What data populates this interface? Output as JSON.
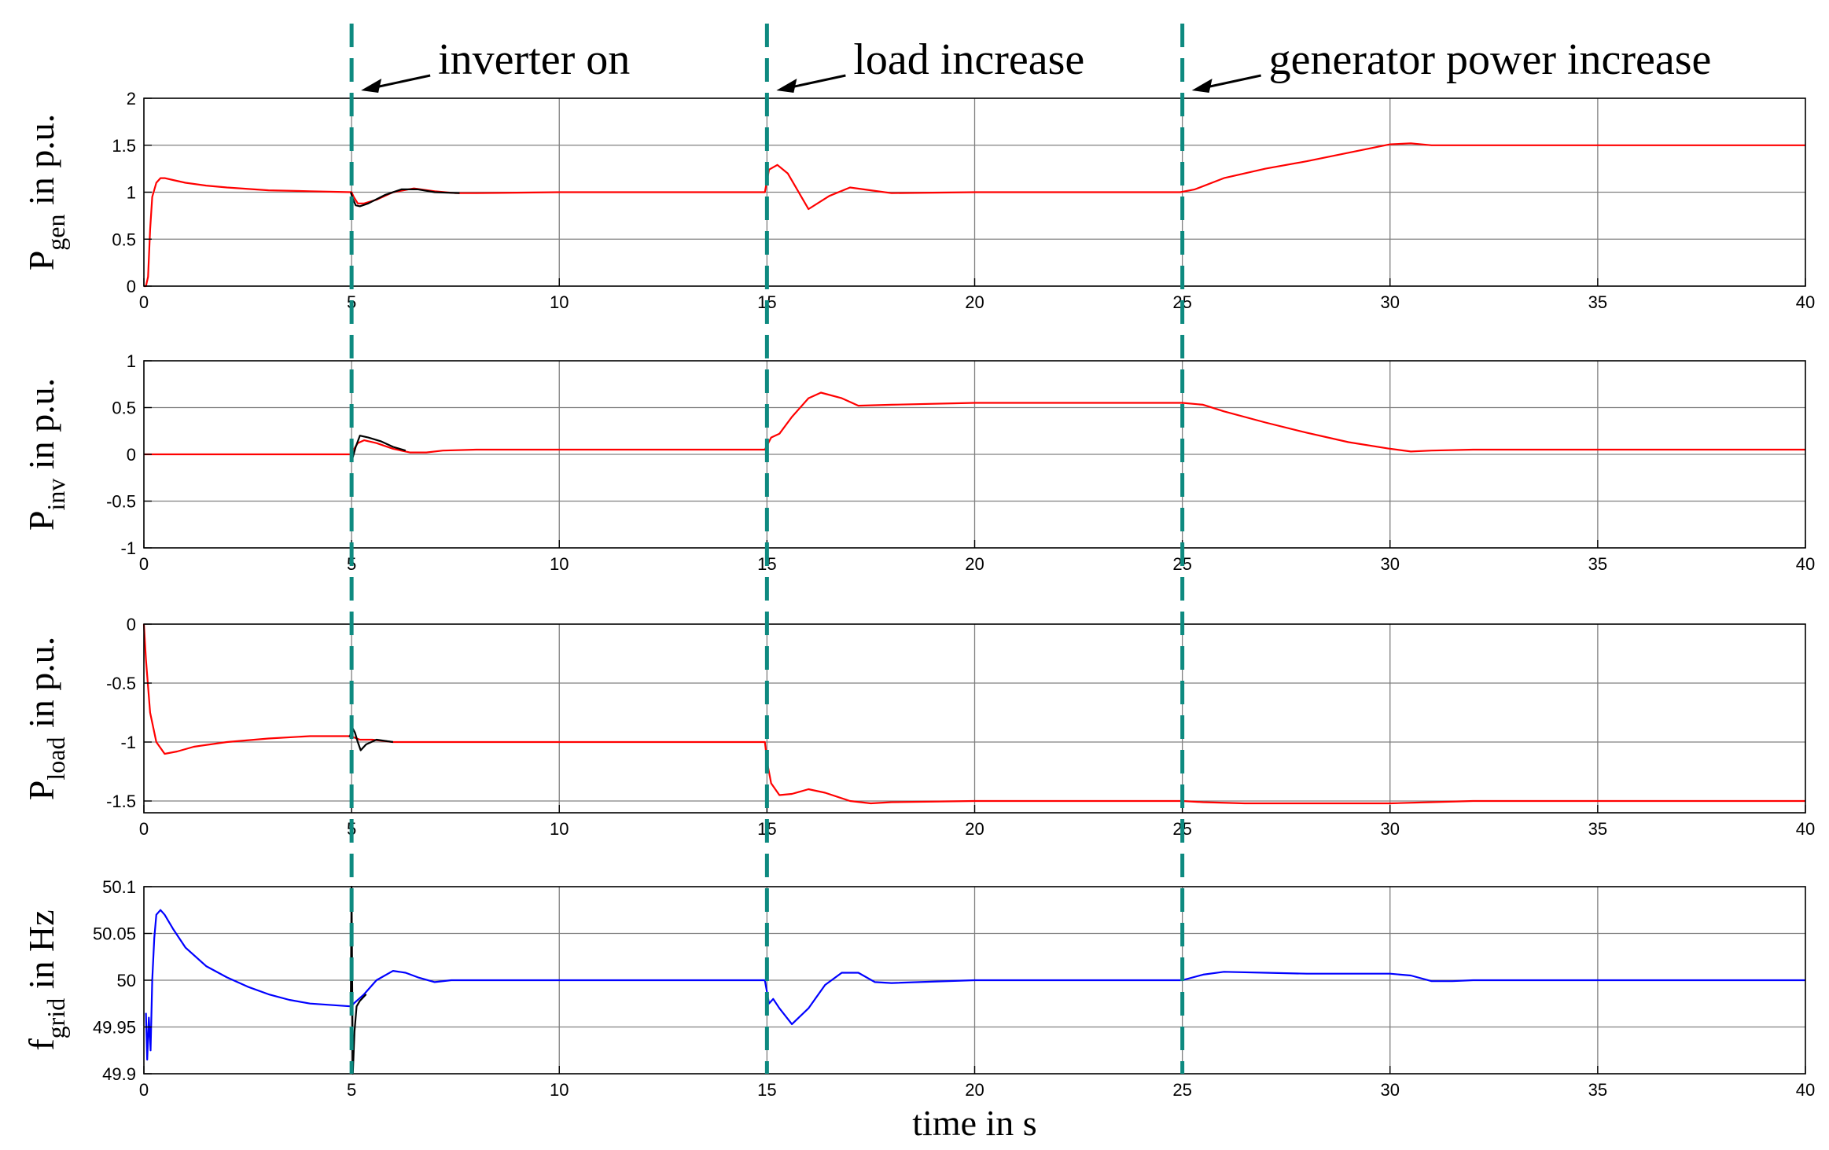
{
  "chart_data": {
    "type": "line",
    "xlabel": "time in s",
    "xlim": [
      0,
      40
    ],
    "xticks": [
      0,
      5,
      10,
      15,
      20,
      25,
      30,
      35,
      40
    ],
    "grid": true,
    "colors": {
      "trace": "#ff0000",
      "trace_f": "#0000ff",
      "reference": "#000000",
      "event_line": "#0e8a80",
      "grid": "#808080"
    },
    "events": [
      {
        "t": 5,
        "label": "inverter on"
      },
      {
        "t": 15,
        "label": "load increase"
      },
      {
        "t": 25,
        "label": "generator power increase"
      }
    ],
    "panels": [
      {
        "ylabel": "P",
        "ylabel_sub": "gen",
        "ylabel_suffix": "in p.u.",
        "ylim": [
          0,
          2
        ],
        "yticks": [
          0,
          0.5,
          1,
          1.5,
          2
        ],
        "yticklabels": [
          "0",
          "0.5",
          "1",
          "1.5",
          "2"
        ],
        "series": [
          {
            "color": "#ff0000",
            "x": [
              0,
              0.05,
              0.1,
              0.15,
              0.2,
              0.3,
              0.4,
              0.5,
              0.7,
              1,
              1.5,
              2,
              3,
              4,
              5,
              5.05,
              5.15,
              5.3,
              5.6,
              6,
              6.5,
              7,
              7.5,
              8,
              10,
              14.95,
              15.05,
              15.25,
              15.5,
              16,
              16.5,
              17,
              17.5,
              18,
              20,
              24.95,
              25.3,
              26,
              27,
              28,
              29,
              30,
              30.5,
              31,
              32,
              35,
              40
            ],
            "y": [
              0,
              0,
              0.1,
              0.6,
              0.95,
              1.1,
              1.15,
              1.15,
              1.13,
              1.1,
              1.07,
              1.05,
              1.02,
              1.01,
              1.0,
              0.95,
              0.88,
              0.88,
              0.92,
              1.0,
              1.04,
              1.01,
              0.99,
              0.99,
              1.0,
              1.0,
              1.24,
              1.29,
              1.2,
              0.82,
              0.96,
              1.05,
              1.02,
              0.99,
              1.0,
              1.0,
              1.03,
              1.15,
              1.25,
              1.33,
              1.42,
              1.51,
              1.52,
              1.5,
              1.5,
              1.5,
              1.5
            ]
          },
          {
            "color": "#000000",
            "x": [
              4.98,
              5.03,
              5.1,
              5.2,
              5.4,
              5.8,
              6.2,
              6.6,
              7,
              7.6
            ],
            "y": [
              1.0,
              0.93,
              0.86,
              0.85,
              0.88,
              0.97,
              1.03,
              1.03,
              1.0,
              0.99
            ]
          }
        ]
      },
      {
        "ylabel": "P",
        "ylabel_sub": "inv",
        "ylabel_suffix": "in p.u.",
        "ylim": [
          -1,
          1
        ],
        "yticks": [
          -1,
          -0.5,
          0,
          0.5,
          1
        ],
        "yticklabels": [
          "-1",
          "-0.5",
          "0",
          "0.5",
          "1"
        ],
        "series": [
          {
            "color": "#ff0000",
            "x": [
              0,
              4.98,
              5.05,
              5.15,
              5.3,
              5.6,
              6,
              6.4,
              6.8,
              7.2,
              8,
              10,
              14.95,
              15.1,
              15.3,
              15.6,
              16,
              16.3,
              16.8,
              17.2,
              18,
              20,
              25,
              25.5,
              26,
              27,
              28,
              29,
              30,
              30.5,
              31,
              32,
              35,
              40
            ],
            "y": [
              0,
              0,
              0.05,
              0.12,
              0.15,
              0.12,
              0.06,
              0.02,
              0.02,
              0.04,
              0.05,
              0.05,
              0.05,
              0.18,
              0.22,
              0.4,
              0.6,
              0.66,
              0.6,
              0.52,
              0.53,
              0.55,
              0.55,
              0.53,
              0.46,
              0.34,
              0.23,
              0.13,
              0.06,
              0.03,
              0.04,
              0.05,
              0.05,
              0.05
            ]
          },
          {
            "color": "#000000",
            "x": [
              4.98,
              5.03,
              5.1,
              5.2,
              5.4,
              5.7,
              6,
              6.3
            ],
            "y": [
              0,
              -0.03,
              0.08,
              0.2,
              0.18,
              0.14,
              0.08,
              0.04
            ]
          }
        ]
      },
      {
        "ylabel": "P",
        "ylabel_sub": "load",
        "ylabel_suffix": "in p.u.",
        "ylim": [
          -1.6,
          0
        ],
        "yticks": [
          -1.5,
          -1,
          -0.5,
          0
        ],
        "yticklabels": [
          "-1.5",
          "-1",
          "-0.5",
          "0"
        ],
        "series": [
          {
            "color": "#ff0000",
            "x": [
              0,
              0.05,
              0.15,
              0.3,
              0.5,
              0.8,
              1.2,
              2,
              3,
              4,
              4.98,
              5.05,
              5.2,
              5.5,
              6,
              6.5,
              7,
              8,
              10,
              14.95,
              15.02,
              15.1,
              15.3,
              15.6,
              16,
              16.4,
              17,
              17.5,
              18,
              20,
              25,
              25.5,
              26.5,
              28,
              30,
              31,
              32,
              35,
              40
            ],
            "y": [
              0,
              -0.3,
              -0.75,
              -1.0,
              -1.1,
              -1.08,
              -1.04,
              -1.0,
              -0.97,
              -0.95,
              -0.95,
              -0.96,
              -0.98,
              -0.98,
              -1.0,
              -1.0,
              -1.0,
              -1.0,
              -1.0,
              -1.0,
              -1.2,
              -1.35,
              -1.45,
              -1.44,
              -1.4,
              -1.43,
              -1.5,
              -1.52,
              -1.51,
              -1.5,
              -1.5,
              -1.51,
              -1.52,
              -1.52,
              -1.52,
              -1.51,
              -1.5,
              -1.5,
              -1.5
            ]
          },
          {
            "color": "#000000",
            "x": [
              4.95,
              5.02,
              5.08,
              5.15,
              5.22,
              5.35,
              5.6,
              6
            ],
            "y": [
              -0.96,
              -0.88,
              -0.92,
              -1.0,
              -1.07,
              -1.02,
              -0.98,
              -1.0
            ]
          }
        ]
      },
      {
        "ylabel": "f",
        "ylabel_sub": "grid",
        "ylabel_suffix": "in Hz",
        "ylim": [
          49.9,
          50.1
        ],
        "yticks": [
          49.9,
          49.95,
          50,
          50.05,
          50.1
        ],
        "yticklabels": [
          "49.9",
          "49.95",
          "50",
          "50.05",
          "50.1"
        ],
        "series": [
          {
            "color": "#0000ff",
            "x": [
              0.05,
              0.08,
              0.12,
              0.16,
              0.2,
              0.25,
              0.3,
              0.4,
              0.5,
              0.7,
              1.0,
              1.5,
              2,
              2.5,
              3,
              3.5,
              4,
              5,
              5.05,
              5.3,
              5.6,
              6,
              6.3,
              6.6,
              7,
              7.4,
              8,
              9,
              10,
              14.95,
              15.05,
              15.15,
              15.3,
              15.6,
              16,
              16.4,
              16.8,
              17.2,
              17.6,
              18,
              20,
              25,
              25.5,
              26,
              27,
              28,
              30,
              30.5,
              31,
              31.5,
              32,
              35,
              40
            ],
            "y": [
              49.965,
              49.915,
              49.96,
              49.925,
              50.0,
              50.045,
              50.07,
              50.075,
              50.07,
              50.055,
              50.035,
              50.015,
              50.003,
              49.993,
              49.985,
              49.979,
              49.975,
              49.972,
              49.975,
              49.985,
              50.0,
              50.01,
              50.008,
              50.003,
              49.998,
              50.0,
              50.0,
              50.0,
              50.0,
              50.0,
              49.975,
              49.98,
              49.97,
              49.953,
              49.97,
              49.995,
              50.008,
              50.008,
              49.998,
              49.997,
              50.0,
              50.0,
              50.006,
              50.009,
              50.008,
              50.007,
              50.007,
              50.005,
              49.999,
              49.999,
              50.0,
              50.0,
              50.0
            ]
          },
          {
            "color": "#000000",
            "x": [
              4.98,
              5.0,
              5.03,
              5.07,
              5.12,
              5.2,
              5.35
            ],
            "y": [
              49.975,
              50.1,
              49.9,
              49.945,
              49.972,
              49.978,
              49.985
            ]
          }
        ]
      }
    ]
  }
}
